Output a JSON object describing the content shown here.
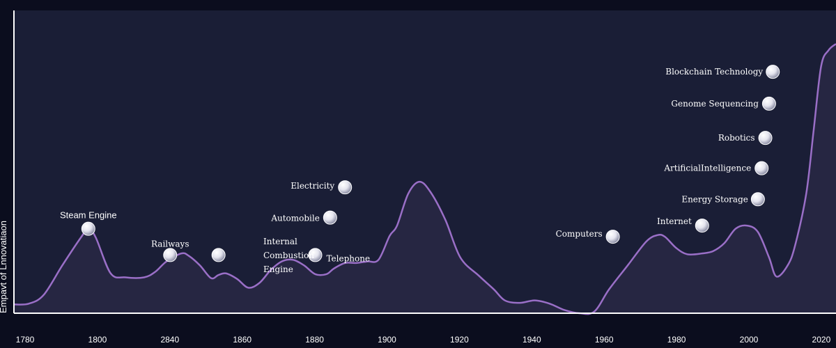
{
  "chart_data": {
    "type": "area",
    "ylabel": "Empavt of Lnnovatiaon",
    "x_ticks": [
      "1780",
      "1800",
      "2840",
      "1860",
      "1880",
      "1900",
      "1920",
      "1940",
      "1960",
      "1980",
      "2000",
      "2020"
    ],
    "series": [
      {
        "points": [
          [
            1777,
            1
          ],
          [
            1781,
            2
          ],
          [
            1785,
            13
          ],
          [
            1790,
            50
          ],
          [
            1795,
            85
          ],
          [
            1797,
            96
          ],
          [
            1799,
            85
          ],
          [
            1803,
            40
          ],
          [
            1807,
            35
          ],
          [
            1812,
            35
          ],
          [
            1815,
            42
          ],
          [
            1818,
            55
          ],
          [
            1822,
            65
          ],
          [
            1824,
            62
          ],
          [
            1827,
            50
          ],
          [
            1830,
            34
          ],
          [
            1832,
            38
          ],
          [
            1834,
            40
          ],
          [
            1837,
            33
          ],
          [
            1840,
            22
          ],
          [
            1843,
            28
          ],
          [
            1846,
            44
          ],
          [
            1849,
            55
          ],
          [
            1852,
            57
          ],
          [
            1855,
            50
          ],
          [
            1858,
            39
          ],
          [
            1861,
            39
          ],
          [
            1863,
            46
          ],
          [
            1866,
            53
          ],
          [
            1869,
            53
          ],
          [
            1872,
            55
          ],
          [
            1875,
            57
          ],
          [
            1878,
            87
          ],
          [
            1880,
            100
          ],
          [
            1883,
            140
          ],
          [
            1886,
            155
          ],
          [
            1889,
            142
          ],
          [
            1893,
            107
          ],
          [
            1897,
            60
          ],
          [
            1902,
            37
          ],
          [
            1906,
            20
          ],
          [
            1909,
            6
          ],
          [
            1913,
            3
          ],
          [
            1917,
            6
          ],
          [
            1921,
            2
          ],
          [
            1925,
            -6
          ],
          [
            1929,
            -10
          ],
          [
            1933,
            -8
          ],
          [
            1937,
            20
          ],
          [
            1942,
            50
          ],
          [
            1947,
            80
          ],
          [
            1950,
            88
          ],
          [
            1952,
            86
          ],
          [
            1955,
            72
          ],
          [
            1958,
            64
          ],
          [
            1962,
            65
          ],
          [
            1965,
            68
          ],
          [
            1968,
            78
          ],
          [
            1971,
            96
          ],
          [
            1974,
            100
          ],
          [
            1977,
            92
          ],
          [
            1980,
            60
          ],
          [
            1982,
            36
          ],
          [
            1985,
            50
          ],
          [
            1987,
            75
          ],
          [
            1990,
            140
          ],
          [
            1992,
            220
          ],
          [
            1994,
            300
          ],
          [
            1996,
            320
          ],
          [
            1998,
            328
          ]
        ]
      }
    ],
    "annotations": [
      {
        "label": "Steam Engine",
        "x": 1797,
        "y": 96
      },
      {
        "label": "Railways",
        "x": 1819,
        "y": 63
      },
      {
        "label": [
          "Internal",
          "Combustion",
          "Engine"
        ],
        "x": 1832,
        "y": 63
      },
      {
        "label": "Telephone",
        "x": 1858,
        "y": 63
      },
      {
        "label": "Automobile",
        "x": 1862,
        "y": 110
      },
      {
        "label": "Electricity",
        "x": 1866,
        "y": 148
      },
      {
        "label": "Computers",
        "x": 1938,
        "y": 86
      },
      {
        "label": "Internet",
        "x": 1962,
        "y": 100
      },
      {
        "label": "Energy Storage",
        "x": 1977,
        "y": 133
      },
      {
        "label": "ArtificialIntelligence",
        "x": 1978,
        "y": 172
      },
      {
        "label": "Robotics",
        "x": 1979,
        "y": 210
      },
      {
        "label": "Genome Sequencing",
        "x": 1980,
        "y": 253
      },
      {
        "label": "Blockchain Technology",
        "x": 1981,
        "y": 293
      }
    ],
    "xlim": [
      1777,
      1998
    ],
    "ylim": [
      -10,
      370
    ],
    "colors": {
      "background": "#0b0d1e",
      "plot": "#1a1e36",
      "line": "#9a6fc7",
      "area": "#262642",
      "axis": "#ffffff"
    },
    "grid": false,
    "legend": "none"
  }
}
